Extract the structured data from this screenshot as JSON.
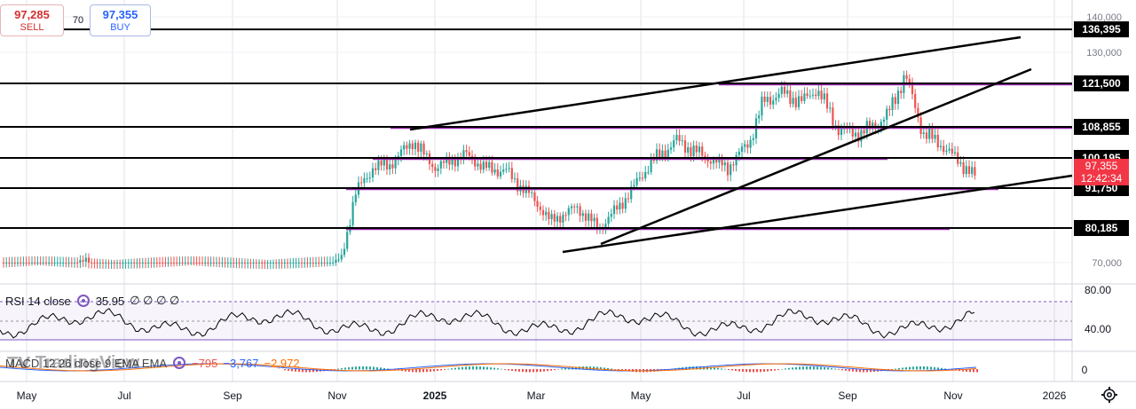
{
  "trade": {
    "sell_price": "97,285",
    "sell_label": "SELL",
    "spread": "70",
    "buy_price": "97,355",
    "buy_label": "BUY"
  },
  "watermark": "TradingView",
  "rsi": {
    "label": "RSI 14 close",
    "value": "35.95",
    "extras": "∅ ∅ ∅ ∅",
    "axis_ticks": [
      "80.00",
      "40.00"
    ]
  },
  "macd": {
    "label": "MACD 12 26 close 9 EMA EMA",
    "v1": "−795",
    "v2": "−3,767",
    "v3": "−2,972",
    "axis_ticks": [
      "0"
    ]
  },
  "price_axis_ticks": [
    "140,000",
    "130,000",
    "108,855",
    "70,000"
  ],
  "levels": [
    "136,395",
    "121,500",
    "108,855",
    "100,195",
    "91,750",
    "80,185"
  ],
  "current_price": {
    "price": "97,355",
    "countdown": "12:42:34"
  },
  "time_axis": [
    "May",
    "Jul",
    "Sep",
    "Nov",
    "2025",
    "Mar",
    "May",
    "Jul",
    "Sep",
    "Nov",
    "2026"
  ],
  "colors": {
    "up": "#26a69a",
    "down": "#ef5350",
    "level": "#000000",
    "zone": "#9c27b0",
    "macd_line": "#2962ff",
    "signal_line": "#ff6d00",
    "rsi_line": "#000000",
    "rsi_band": "#7e57c2"
  },
  "icons": [
    "settings-gear-icon",
    "indicator-eye-icon"
  ]
}
